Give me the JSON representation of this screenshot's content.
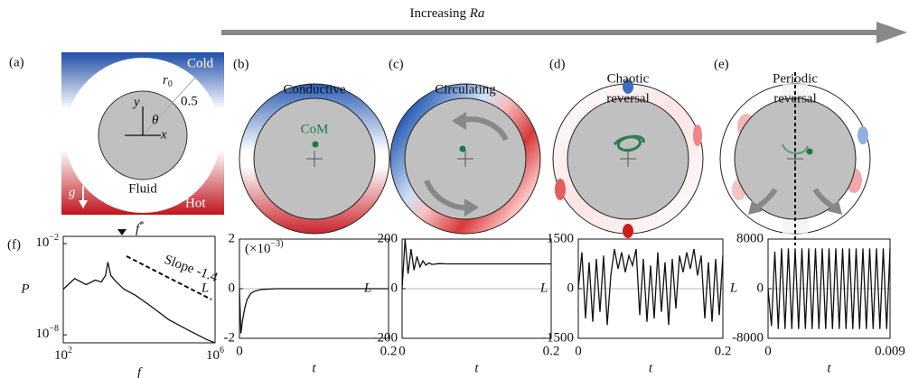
{
  "heading": {
    "text": "Increasing ",
    "italic": "Ra"
  },
  "panel_a": {
    "label": "(a)",
    "cold": "Cold",
    "hot": "Hot",
    "fluid": "Fluid",
    "g": "g",
    "symbol": "f",
    "symbol_sup": "*",
    "r": "r",
    "r_sub": "0",
    "half": "0.5",
    "y": "y",
    "x": "x",
    "theta": "θ"
  },
  "panels": [
    {
      "label": "(b)",
      "title": [
        "Conductive"
      ],
      "com": "CoM"
    },
    {
      "label": "(c)",
      "title": [
        "Circulating"
      ]
    },
    {
      "label": "(d)",
      "title": [
        "Chaotic",
        "reversal"
      ]
    },
    {
      "label": "(e)",
      "title": [
        "Periodic",
        "reversal"
      ]
    }
  ],
  "panel_f": {
    "label": "(f)"
  },
  "chart_data": [
    {
      "type": "line",
      "log": true,
      "xlabel": "f",
      "ylabel": "P",
      "annotation": "Slope -1.4",
      "x": [
        100,
        200,
        400,
        700,
        1000,
        1300,
        1500,
        1800,
        2500,
        4000,
        8000,
        20000,
        60000,
        200000,
        600000,
        1000000
      ],
      "values": [
        1e-05,
        5e-05,
        2e-05,
        4e-05,
        3e-05,
        8e-05,
        0.0006,
        8e-05,
        3e-05,
        1e-05,
        4e-06,
        8e-07,
        1e-07,
        2e-08,
        5e-09,
        3e-09
      ],
      "xlim": [
        100,
        1000000
      ],
      "ylim": [
        3e-09,
        0.03
      ],
      "xticks": [
        {
          "value": 100,
          "label": "10^2"
        },
        {
          "value": 1000000,
          "label": "10^6"
        }
      ],
      "yticks": [
        {
          "value": 0.01,
          "label": "10^-2"
        },
        {
          "value": 1e-08,
          "label": "10^-8"
        }
      ]
    },
    {
      "type": "line",
      "xlabel": "t",
      "ylabel": "L",
      "annotation": "(×10^-3)",
      "x": [
        0,
        0.002,
        0.004,
        0.007,
        0.01,
        0.015,
        0.02,
        0.03,
        0.05,
        0.1,
        0.15,
        0.2
      ],
      "values": [
        0,
        -1.8,
        -1.3,
        -0.8,
        -0.45,
        -0.2,
        -0.1,
        -0.03,
        0,
        0,
        0,
        0
      ],
      "xlim": [
        0,
        0.2
      ],
      "ylim": [
        -2,
        2
      ],
      "xticks": [
        0,
        0.2
      ],
      "yticks": [
        -2,
        0,
        2
      ]
    },
    {
      "type": "line",
      "xlabel": "t",
      "ylabel": "L",
      "x": [
        0,
        0.004,
        0.008,
        0.012,
        0.016,
        0.02,
        0.024,
        0.028,
        0.032,
        0.036,
        0.04,
        0.05,
        0.06,
        0.1,
        0.15,
        0.2
      ],
      "values": [
        0,
        200,
        60,
        160,
        75,
        130,
        88,
        112,
        95,
        104,
        98,
        101,
        100,
        100,
        100,
        100
      ],
      "xlim": [
        0,
        0.2
      ],
      "ylim": [
        -200,
        200
      ],
      "xticks": [
        0,
        0.2
      ],
      "yticks": [
        -200,
        0,
        200
      ]
    },
    {
      "type": "line",
      "xlabel": "t",
      "ylabel": "L",
      "x": [
        0,
        0.005,
        0.01,
        0.015,
        0.02,
        0.025,
        0.03,
        0.035,
        0.04,
        0.045,
        0.05,
        0.055,
        0.06,
        0.065,
        0.07,
        0.075,
        0.08,
        0.085,
        0.09,
        0.095,
        0.1,
        0.105,
        0.11,
        0.115,
        0.12,
        0.125,
        0.13,
        0.135,
        0.14,
        0.145,
        0.15,
        0.155,
        0.16,
        0.165,
        0.17,
        0.175,
        0.18,
        0.185,
        0.19,
        0.195,
        0.2
      ],
      "values": [
        0,
        1100,
        -900,
        800,
        -1000,
        900,
        -700,
        1000,
        -1100,
        400,
        1200,
        600,
        1100,
        500,
        1000,
        700,
        1200,
        -800,
        900,
        -1000,
        700,
        -900,
        1100,
        -700,
        800,
        -1100,
        900,
        -600,
        1000,
        500,
        1100,
        600,
        1200,
        400,
        1000,
        -900,
        800,
        -1000,
        900,
        -800,
        1000
      ],
      "xlim": [
        0,
        0.2
      ],
      "ylim": [
        -1500,
        1500
      ],
      "xticks": [
        0,
        0.2
      ],
      "yticks": [
        -1500,
        0,
        1500
      ]
    },
    {
      "type": "line",
      "xlabel": "t",
      "ylabel": "L",
      "x": [
        0,
        0.00025,
        0.0005,
        0.00075,
        0.001,
        0.00125,
        0.0015,
        0.00175,
        0.002,
        0.00225,
        0.0025,
        0.00275,
        0.003,
        0.00325,
        0.0035,
        0.00375,
        0.004,
        0.00425,
        0.0045,
        0.00475,
        0.005,
        0.00525,
        0.0055,
        0.00575,
        0.006,
        0.00625,
        0.0065,
        0.00675,
        0.007,
        0.00725,
        0.0075,
        0.00775,
        0.008,
        0.00825,
        0.0085,
        0.00875,
        0.009
      ],
      "values": [
        0,
        -6000,
        6000,
        -6500,
        6500,
        -6500,
        6500,
        -6500,
        6500,
        -6500,
        6500,
        -6500,
        6500,
        -6500,
        6500,
        -6500,
        6500,
        -6500,
        6500,
        -6500,
        6500,
        -6500,
        6500,
        -6500,
        6500,
        -6500,
        6500,
        -6500,
        6500,
        -6500,
        6500,
        -6500,
        6500,
        -6500,
        6500,
        -6500,
        6500
      ],
      "xlim": [
        0,
        0.009
      ],
      "ylim": [
        -8000,
        8000
      ],
      "xticks": [
        0,
        0.009
      ],
      "yticks": [
        -8000,
        0,
        8000
      ]
    }
  ]
}
